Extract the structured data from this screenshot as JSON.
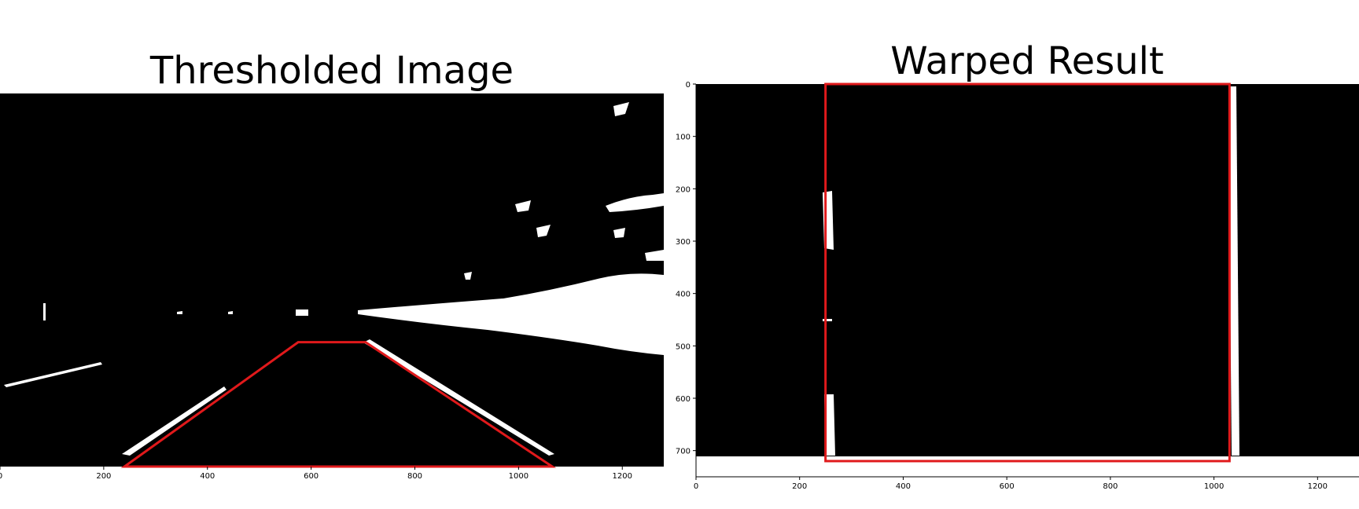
{
  "chart_data": [
    {
      "type": "image",
      "title": "Thresholded Image",
      "xlim": [
        0,
        1280
      ],
      "ylim": [
        720,
        0
      ],
      "xticks": [
        0,
        200,
        400,
        600,
        800,
        1000,
        1200
      ],
      "yticks": [],
      "overlay": {
        "shape": "polygon",
        "color": "#e0191b",
        "points": [
          [
            240,
            720
          ],
          [
            575,
            480
          ],
          [
            705,
            480
          ],
          [
            1065,
            720
          ]
        ]
      }
    },
    {
      "type": "image",
      "title": "Warped Result",
      "xlim": [
        0,
        1280
      ],
      "ylim": [
        750,
        0
      ],
      "xticks": [
        0,
        200,
        400,
        600,
        800,
        1000,
        1200
      ],
      "yticks": [
        0,
        100,
        200,
        300,
        400,
        500,
        600,
        700
      ],
      "overlay": {
        "shape": "rectangle",
        "color": "#e0191b",
        "points": [
          [
            250,
            0
          ],
          [
            1030,
            0
          ],
          [
            1030,
            720
          ],
          [
            250,
            720
          ]
        ]
      }
    }
  ]
}
